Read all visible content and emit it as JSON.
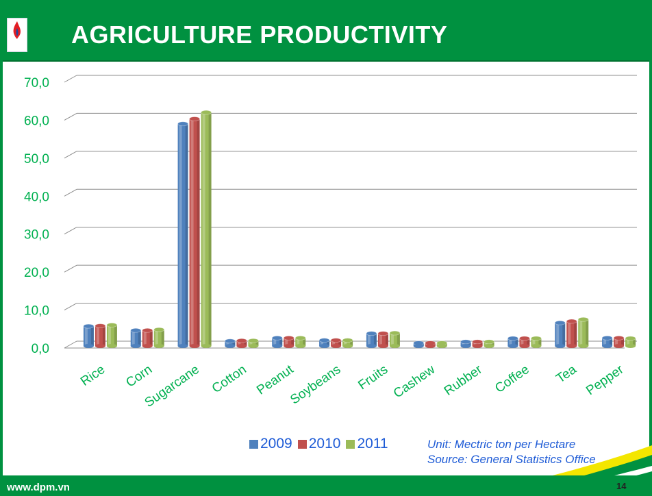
{
  "header": {
    "title": "AGRICULTURE PRODUCTIVITY",
    "logo_icon": "pvfcco-flame-logo-icon"
  },
  "colors": {
    "header_green": "#009140",
    "label_green": "#00b050",
    "text_blue": "#1e5bd6",
    "series_2009": "#4f81bd",
    "series_2010": "#c0504d",
    "series_2011": "#9bbb59"
  },
  "chart_data": {
    "type": "bar",
    "title": "",
    "xlabel": "",
    "ylabel": "",
    "ylim": [
      0,
      70
    ],
    "y_ticks": [
      "0,0",
      "10,0",
      "20,0",
      "30,0",
      "40,0",
      "50,0",
      "60,0",
      "70,0"
    ],
    "grid": true,
    "legend_position": "bottom",
    "categories": [
      "Rice",
      "Corn",
      "Sugarcane",
      "Cotton",
      "Peanut",
      "Soybeans",
      "Fruits",
      "Cashew",
      "Rubber",
      "Coffee",
      "Tea",
      "Pepper"
    ],
    "series": [
      {
        "name": "2009",
        "color": "#4f81bd",
        "values": [
          5.2,
          4.1,
          58.5,
          1.3,
          2.1,
          1.5,
          3.3,
          0.8,
          1.1,
          2.0,
          6.1,
          2.1
        ]
      },
      {
        "name": "2010",
        "color": "#c0504d",
        "values": [
          5.3,
          4.1,
          59.8,
          1.4,
          2.1,
          1.5,
          3.3,
          0.8,
          1.1,
          2.0,
          6.5,
          2.1
        ]
      },
      {
        "name": "2011",
        "color": "#9bbb59",
        "values": [
          5.5,
          4.3,
          61.5,
          1.4,
          2.1,
          1.5,
          3.4,
          0.8,
          1.1,
          2.0,
          7.0,
          2.0
        ]
      }
    ]
  },
  "notes": {
    "unit": "Unit: Mectric ton per Hectare",
    "source": "Source: General Statistics Office"
  },
  "footer": {
    "website": "www.dpm.vn",
    "page_number": "14"
  }
}
